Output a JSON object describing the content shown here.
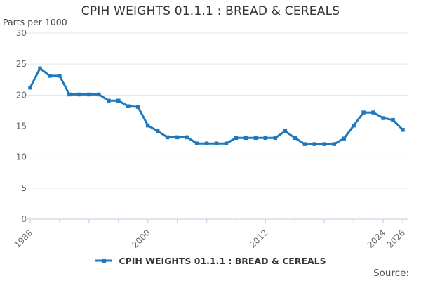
{
  "title": "CPIH WEIGHTS 01.1.1 : BREAD & CEREALS",
  "y_axis_unit_label": "Parts per 1000",
  "source_label": "Source:",
  "legend": {
    "label": "CPIH WEIGHTS 01.1.1 : BREAD & CEREALS"
  },
  "colors": {
    "series": "#1e78be",
    "grid": "#e6e6e6",
    "axis": "#c9d7e8",
    "tick_text": "#666666",
    "title_text": "#333333"
  },
  "chart_data": {
    "type": "line",
    "title": "CPIH WEIGHTS 01.1.1 : BREAD & CEREALS",
    "xlabel": "",
    "ylabel": "Parts per 1000",
    "ylim": [
      0,
      30
    ],
    "ytick_step": 5,
    "grid": "horizontal",
    "legend_position": "bottom",
    "marker": "square",
    "xticks_labeled": [
      1988,
      2000,
      2012,
      2024,
      2026
    ],
    "xtick_minor_step": 3,
    "x": [
      1988,
      1989,
      1990,
      1991,
      1992,
      1993,
      1994,
      1995,
      1996,
      1997,
      1998,
      1999,
      2000,
      2001,
      2002,
      2003,
      2004,
      2005,
      2006,
      2007,
      2008,
      2009,
      2010,
      2011,
      2012,
      2013,
      2014,
      2015,
      2016,
      2017,
      2018,
      2019,
      2020,
      2021,
      2022,
      2023,
      2024,
      2025,
      2026
    ],
    "series": [
      {
        "name": "CPIH WEIGHTS 01.1.1 : BREAD & CEREALS",
        "values": [
          21.2,
          24.3,
          23.1,
          23.1,
          20.1,
          20.1,
          20.1,
          20.1,
          19.1,
          19.1,
          18.2,
          18.1,
          15.1,
          14.2,
          13.2,
          13.2,
          13.2,
          12.2,
          12.2,
          12.2,
          12.2,
          13.1,
          13.1,
          13.1,
          13.1,
          13.1,
          14.2,
          13.1,
          12.1,
          12.1,
          12.1,
          12.1,
          13.0,
          15.1,
          17.2,
          17.2,
          16.3,
          16.0,
          14.4
        ]
      }
    ]
  }
}
